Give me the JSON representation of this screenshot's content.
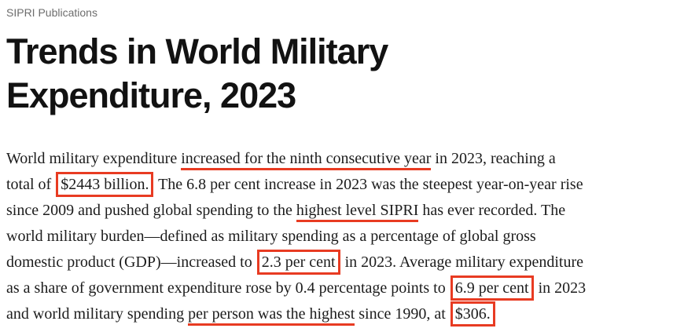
{
  "page": {
    "eyebrow": "SIPRI Publications",
    "title_line1": "Trends in World Military",
    "title_line2": "Expenditure, 2023"
  },
  "colors": {
    "annotation_red": "#e83b22",
    "eyebrow_gray": "#6d6d6d",
    "heading_black": "#121212",
    "body_black": "#1c1c1c"
  },
  "paragraph": {
    "lines": [
      {
        "segments": [
          {
            "t": "World military expenditure ",
            "m": "plain"
          },
          {
            "t": "increased for the ninth consecutive year",
            "m": "underline"
          },
          {
            "t": " in 2023, reaching a",
            "m": "plain"
          }
        ]
      },
      {
        "segments": [
          {
            "t": "total of ",
            "m": "plain"
          },
          {
            "t": "$2443 billion.",
            "m": "box"
          },
          {
            "t": " The 6.8 per cent increase in 2023 was the steepest year-on-year rise",
            "m": "plain"
          }
        ]
      },
      {
        "segments": [
          {
            "t": "since 2009 and pushed global spending to the ",
            "m": "plain"
          },
          {
            "t": "highest level SIPRI",
            "m": "underline"
          },
          {
            "t": " has ever recorded. The",
            "m": "plain"
          }
        ]
      },
      {
        "segments": [
          {
            "t": "world military burden—defined as military spending as a percentage of global gross",
            "m": "plain"
          }
        ]
      },
      {
        "segments": [
          {
            "t": "domestic product (GDP)—increased to ",
            "m": "plain"
          },
          {
            "t": "2.3 per cent",
            "m": "box"
          },
          {
            "t": " in 2023. Average military expenditure",
            "m": "plain"
          }
        ]
      },
      {
        "segments": [
          {
            "t": "as a share of government expenditure rose by 0.4 percentage points to ",
            "m": "plain"
          },
          {
            "t": "6.9 per cent",
            "m": "box"
          },
          {
            "t": " in 2023",
            "m": "plain"
          }
        ]
      },
      {
        "segments": [
          {
            "t": "and world military spending ",
            "m": "plain"
          },
          {
            "t": "per person was the highest",
            "m": "underline"
          },
          {
            "t": " since 1990, at ",
            "m": "plain"
          },
          {
            "t": "$306.",
            "m": "box"
          }
        ]
      }
    ]
  }
}
